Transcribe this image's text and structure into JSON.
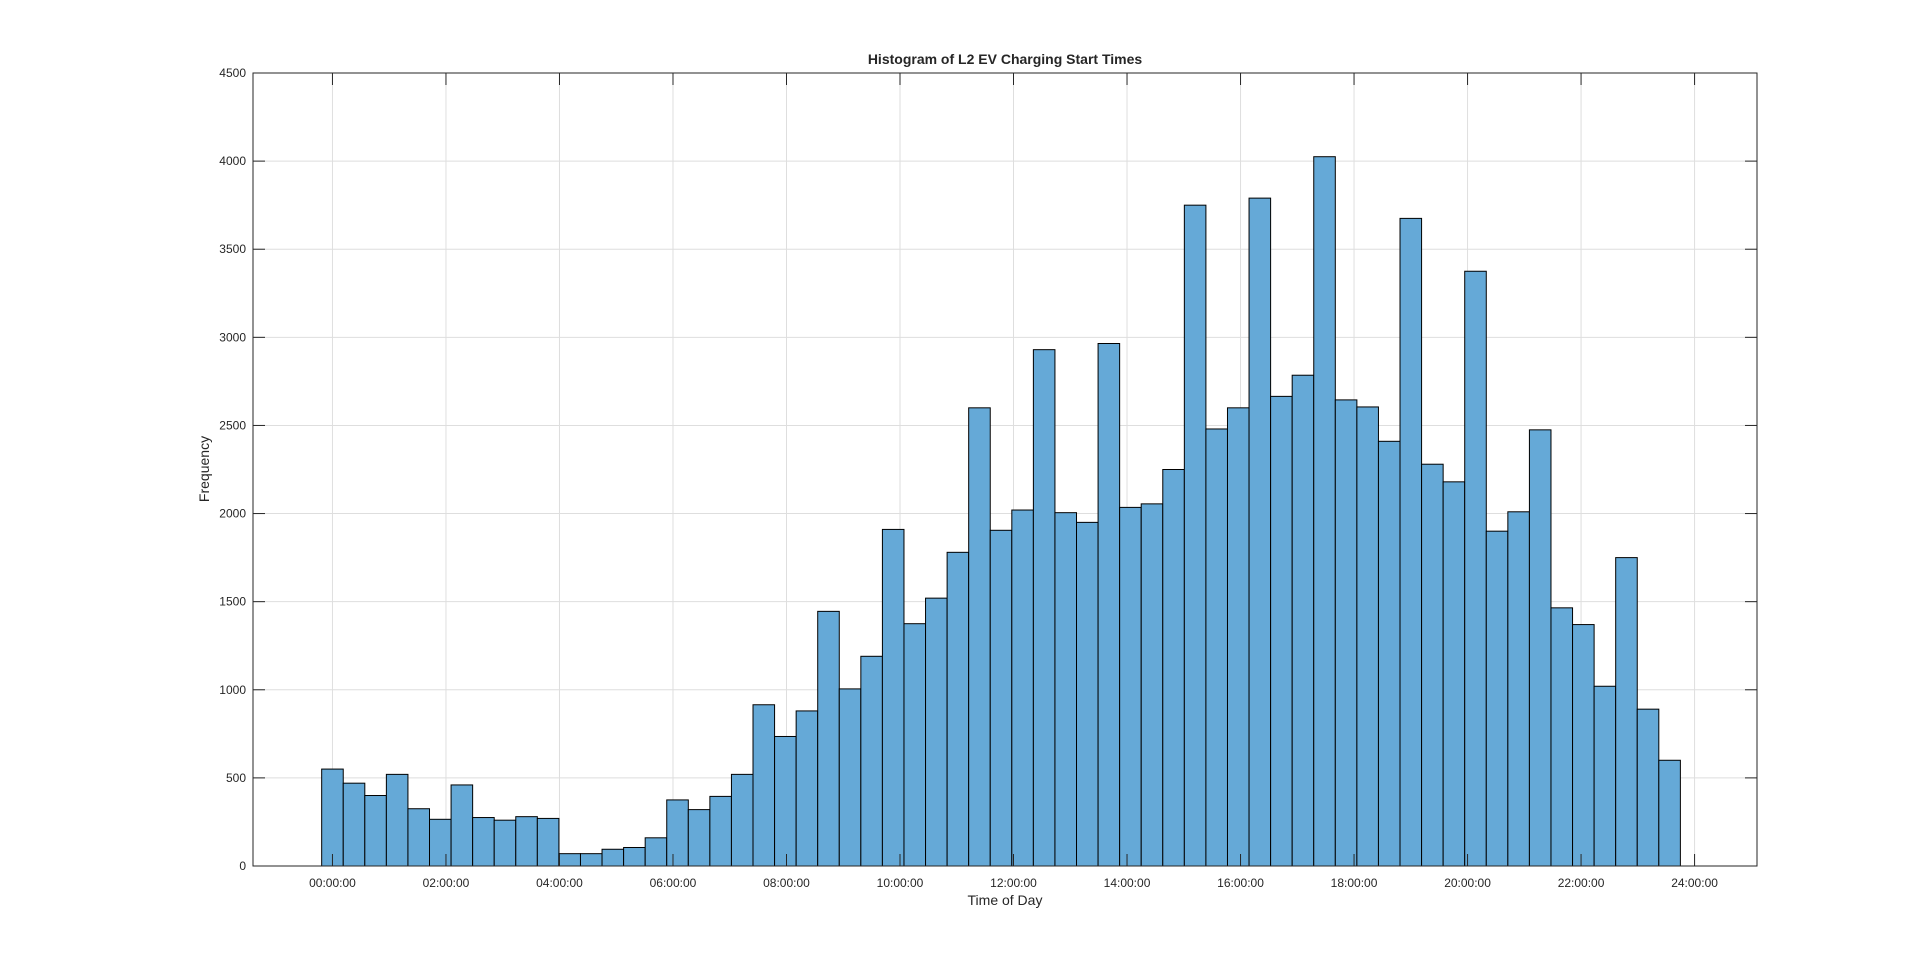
{
  "chart_data": {
    "type": "bar",
    "title": "Histogram of L2 EV Charging Start Times",
    "xlabel": "Time of Day",
    "ylabel": "Frequency",
    "xlim_hours": [
      -1.4,
      25.1
    ],
    "ylim": [
      0,
      4500
    ],
    "grid": true,
    "legend": "none",
    "bar_color": "#65a9d7",
    "edge_color": "#000000",
    "x_ticks": [
      {
        "hour": 0,
        "label": "00:00:00"
      },
      {
        "hour": 2,
        "label": "02:00:00"
      },
      {
        "hour": 4,
        "label": "04:00:00"
      },
      {
        "hour": 6,
        "label": "06:00:00"
      },
      {
        "hour": 8,
        "label": "08:00:00"
      },
      {
        "hour": 10,
        "label": "10:00:00"
      },
      {
        "hour": 12,
        "label": "12:00:00"
      },
      {
        "hour": 14,
        "label": "14:00:00"
      },
      {
        "hour": 16,
        "label": "16:00:00"
      },
      {
        "hour": 18,
        "label": "18:00:00"
      },
      {
        "hour": 20,
        "label": "20:00:00"
      },
      {
        "hour": 22,
        "label": "22:00:00"
      },
      {
        "hour": 24,
        "label": "24:00:00"
      }
    ],
    "y_ticks": [
      {
        "value": 0,
        "label": "0"
      },
      {
        "value": 500,
        "label": "500"
      },
      {
        "value": 1000,
        "label": "1000"
      },
      {
        "value": 1500,
        "label": "1500"
      },
      {
        "value": 2000,
        "label": "2000"
      },
      {
        "value": 2500,
        "label": "2500"
      },
      {
        "value": 3000,
        "label": "3000"
      },
      {
        "value": 3500,
        "label": "3500"
      },
      {
        "value": 4000,
        "label": "4000"
      },
      {
        "value": 4500,
        "label": "4500"
      }
    ],
    "bin_width_hours": 0.38,
    "bin_start_hours": -0.19,
    "values": [
      550,
      470,
      400,
      520,
      325,
      265,
      460,
      275,
      260,
      280,
      270,
      70,
      70,
      95,
      105,
      160,
      375,
      320,
      395,
      520,
      915,
      735,
      880,
      1445,
      1005,
      1190,
      1910,
      1375,
      1520,
      1780,
      2600,
      1905,
      2020,
      2930,
      2005,
      1950,
      2965,
      2035,
      2055,
      2250,
      3750,
      2480,
      2600,
      3790,
      2665,
      2785,
      4025,
      2645,
      2605,
      2410,
      3675,
      2280,
      2180,
      3375,
      1900,
      2010,
      2475,
      1465,
      1370,
      1020,
      1750,
      890,
      600
    ]
  }
}
